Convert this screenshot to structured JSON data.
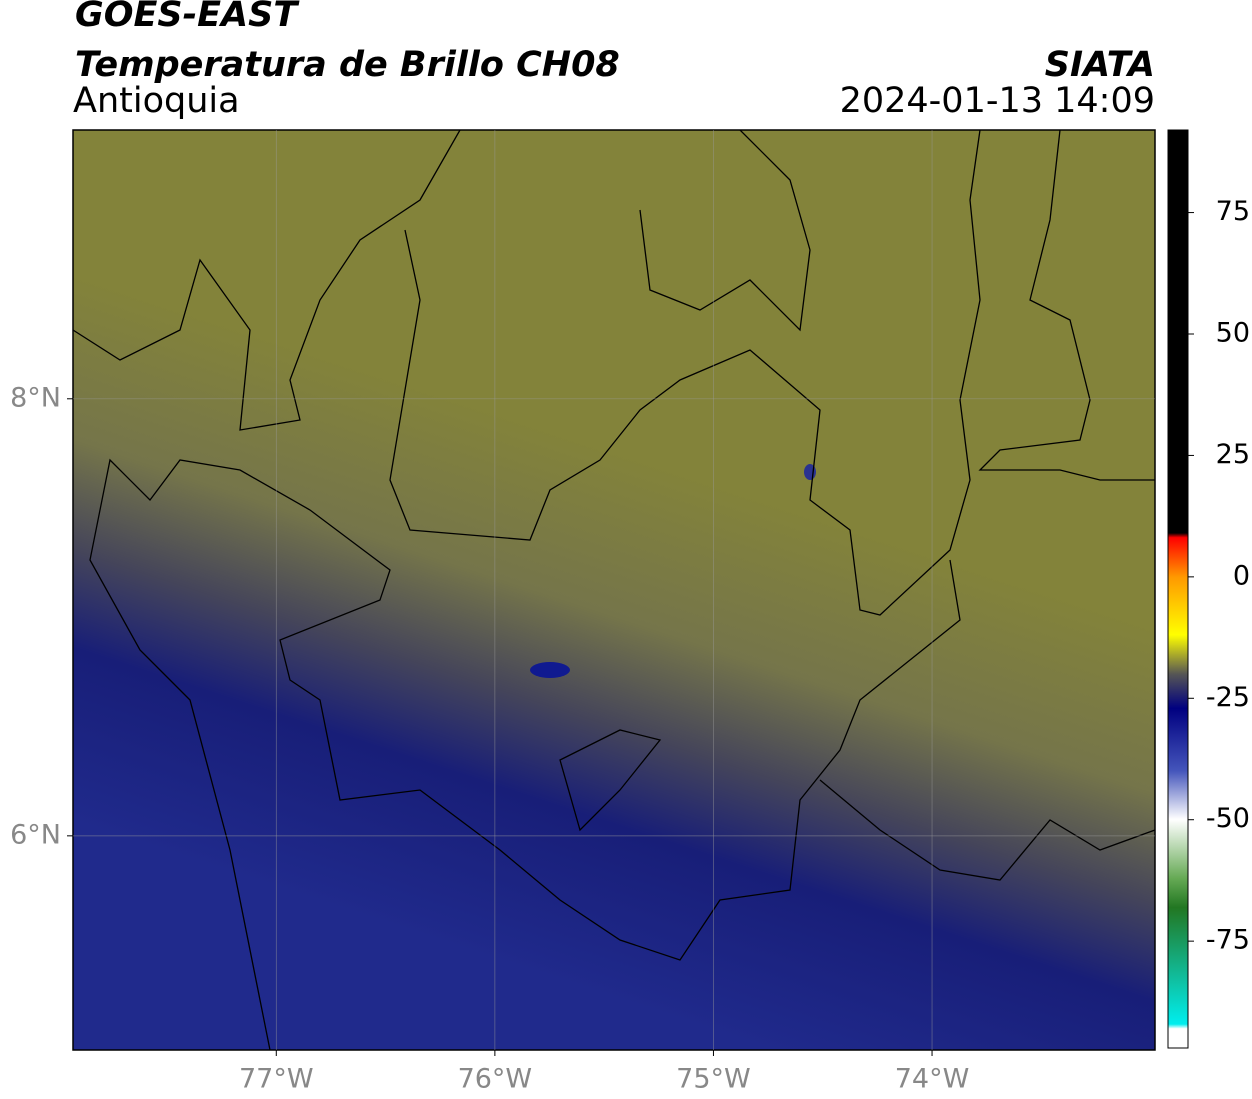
{
  "header": {
    "title": "GOES-EAST",
    "subtitle": "Temperatura de Brillo CH08",
    "region": "Antioquia",
    "source": "SIATA",
    "datetime": "2024-01-13 14:09"
  },
  "map": {
    "xlim": [
      -77.93,
      -72.98
    ],
    "ylim": [
      5.02,
      9.23
    ],
    "xticks": [
      {
        "value": -77,
        "label": "77°W"
      },
      {
        "value": -76,
        "label": "76°W"
      },
      {
        "value": -75,
        "label": "75°W"
      },
      {
        "value": -74,
        "label": "74°W"
      }
    ],
    "yticks": [
      {
        "value": 6,
        "label": "6°N"
      },
      {
        "value": 8,
        "label": "8°N"
      }
    ],
    "grid": true
  },
  "colorbar": {
    "lim": [
      -97,
      92
    ],
    "ticks": [
      -75,
      -50,
      -25,
      0,
      25,
      50,
      75
    ]
  }
}
